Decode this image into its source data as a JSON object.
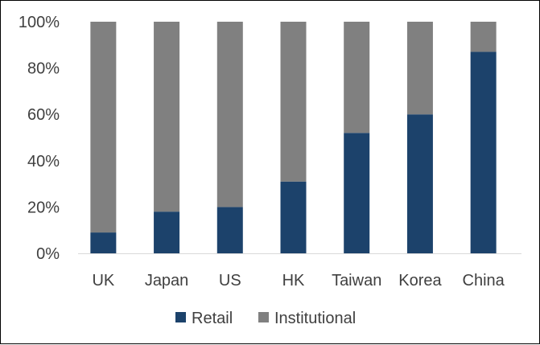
{
  "chart_data": {
    "type": "bar",
    "stacked": true,
    "categories": [
      "UK",
      "Japan",
      "US",
      "HK",
      "Taiwan",
      "Korea",
      "China"
    ],
    "series": [
      {
        "name": "Retail",
        "color": "#1c426b",
        "values": [
          9,
          18,
          20,
          31,
          52,
          60,
          87
        ]
      },
      {
        "name": "Institutional",
        "color": "#808080",
        "values": [
          91,
          82,
          80,
          69,
          48,
          40,
          13
        ]
      }
    ],
    "ylim": [
      0,
      100
    ],
    "yticks": [
      0,
      20,
      40,
      60,
      80,
      100
    ],
    "ytick_labels": [
      "0%",
      "20%",
      "40%",
      "60%",
      "80%",
      "100%"
    ],
    "title": "",
    "xlabel": "",
    "ylabel": "",
    "grid": false,
    "legend_position": "bottom"
  }
}
